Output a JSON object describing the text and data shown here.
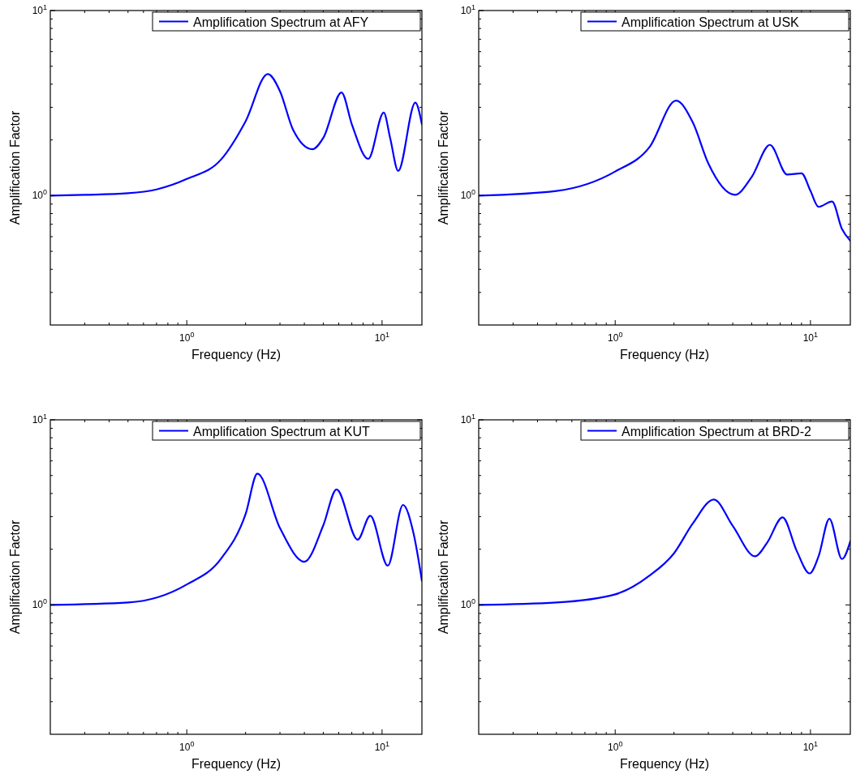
{
  "chart_data": [
    {
      "type": "line",
      "xlabel": "Frequency (Hz)",
      "ylabel": "Amplification Factor",
      "log": "xy",
      "legend": "top right",
      "xlim": [
        0.2,
        16
      ],
      "ylim": [
        0.2,
        10
      ],
      "xticks": [
        {
          "value": 0.3,
          "label": null
        },
        {
          "value": 0.4,
          "label": null
        },
        {
          "value": 0.5,
          "label": null
        },
        {
          "value": 0.6,
          "label": null
        },
        {
          "value": 0.7,
          "label": null
        },
        {
          "value": 0.8,
          "label": null
        },
        {
          "value": 0.9,
          "label": null
        },
        {
          "value": 1,
          "label": "10$^{0}$"
        },
        {
          "value": 2,
          "label": null
        },
        {
          "value": 3,
          "label": null
        },
        {
          "value": 4,
          "label": null
        },
        {
          "value": 5,
          "label": null
        },
        {
          "value": 6,
          "label": null
        },
        {
          "value": 7,
          "label": null
        },
        {
          "value": 8,
          "label": null
        },
        {
          "value": 9,
          "label": null
        },
        {
          "value": 10,
          "label": "10$^{1}$"
        }
      ],
      "yticks": [
        {
          "value": 0.3,
          "label": null
        },
        {
          "value": 0.4,
          "label": null
        },
        {
          "value": 0.5,
          "label": null
        },
        {
          "value": 0.6,
          "label": null
        },
        {
          "value": 0.7,
          "label": null
        },
        {
          "value": 0.8,
          "label": null
        },
        {
          "value": 0.9,
          "label": null
        },
        {
          "value": 1,
          "label": "10$^{0}$"
        },
        {
          "value": 2,
          "label": null
        },
        {
          "value": 3,
          "label": null
        },
        {
          "value": 4,
          "label": null
        },
        {
          "value": 5,
          "label": null
        },
        {
          "value": 6,
          "label": null
        },
        {
          "value": 7,
          "label": null
        },
        {
          "value": 8,
          "label": null
        },
        {
          "value": 9,
          "label": null
        },
        {
          "value": 10,
          "label": "10$^{1}$"
        }
      ],
      "series": [
        {
          "name": "Amplification Spectrum at AFY",
          "color": "#0000ff",
          "x": [
            0.2,
            0.3,
            0.5,
            0.7,
            1.0,
            1.5,
            2.0,
            2.6,
            3.0,
            3.5,
            4.4,
            5.0,
            6.2,
            7.0,
            8.5,
            10.2,
            11.0,
            12.1,
            14.8,
            16
          ],
          "values": [
            1.0,
            1.01,
            1.03,
            1.08,
            1.23,
            1.57,
            2.52,
            4.54,
            3.67,
            2.27,
            1.78,
            2.05,
            3.61,
            2.43,
            1.58,
            2.81,
            2.05,
            1.36,
            3.18,
            2.43
          ]
        }
      ]
    },
    {
      "type": "line",
      "xlabel": "Frequency (Hz)",
      "ylabel": "Amplification Factor",
      "log": "xy",
      "legend": "top right",
      "xlim": [
        0.2,
        16
      ],
      "ylim": [
        0.2,
        10
      ],
      "xticks": [
        {
          "value": 0.3,
          "label": null
        },
        {
          "value": 0.4,
          "label": null
        },
        {
          "value": 0.5,
          "label": null
        },
        {
          "value": 0.6,
          "label": null
        },
        {
          "value": 0.7,
          "label": null
        },
        {
          "value": 0.8,
          "label": null
        },
        {
          "value": 0.9,
          "label": null
        },
        {
          "value": 1,
          "label": "10$^{0}$"
        },
        {
          "value": 2,
          "label": null
        },
        {
          "value": 3,
          "label": null
        },
        {
          "value": 4,
          "label": null
        },
        {
          "value": 5,
          "label": null
        },
        {
          "value": 6,
          "label": null
        },
        {
          "value": 7,
          "label": null
        },
        {
          "value": 8,
          "label": null
        },
        {
          "value": 9,
          "label": null
        },
        {
          "value": 10,
          "label": "10$^{1}$"
        }
      ],
      "yticks": [
        {
          "value": 0.3,
          "label": null
        },
        {
          "value": 0.4,
          "label": null
        },
        {
          "value": 0.5,
          "label": null
        },
        {
          "value": 0.6,
          "label": null
        },
        {
          "value": 0.7,
          "label": null
        },
        {
          "value": 0.8,
          "label": null
        },
        {
          "value": 0.9,
          "label": null
        },
        {
          "value": 1,
          "label": "10$^{0}$"
        },
        {
          "value": 2,
          "label": null
        },
        {
          "value": 3,
          "label": null
        },
        {
          "value": 4,
          "label": null
        },
        {
          "value": 5,
          "label": null
        },
        {
          "value": 6,
          "label": null
        },
        {
          "value": 7,
          "label": null
        },
        {
          "value": 8,
          "label": null
        },
        {
          "value": 9,
          "label": null
        },
        {
          "value": 10,
          "label": "10$^{1}$"
        }
      ],
      "series": [
        {
          "name": "Amplification Spectrum at USK",
          "color": "#0000ff",
          "x": [
            0.2,
            0.5,
            1.0,
            1.5,
            2.05,
            2.5,
            3.0,
            4.1,
            5.0,
            6.2,
            7.6,
            9.0,
            10.0,
            11.0,
            12.9,
            14.5,
            16
          ],
          "values": [
            1.0,
            1.06,
            1.35,
            1.83,
            3.26,
            2.48,
            1.49,
            1.01,
            1.26,
            1.88,
            1.3,
            1.32,
            1.06,
            0.87,
            0.93,
            0.66,
            0.57
          ]
        }
      ]
    },
    {
      "type": "line",
      "xlabel": "Frequency (Hz)",
      "ylabel": "Amplification Factor",
      "log": "xy",
      "legend": "top right",
      "xlim": [
        0.2,
        16
      ],
      "ylim": [
        0.2,
        10
      ],
      "xticks": [
        {
          "value": 0.3,
          "label": null
        },
        {
          "value": 0.4,
          "label": null
        },
        {
          "value": 0.5,
          "label": null
        },
        {
          "value": 0.6,
          "label": null
        },
        {
          "value": 0.7,
          "label": null
        },
        {
          "value": 0.8,
          "label": null
        },
        {
          "value": 0.9,
          "label": null
        },
        {
          "value": 1,
          "label": "10$^{0}$"
        },
        {
          "value": 2,
          "label": null
        },
        {
          "value": 3,
          "label": null
        },
        {
          "value": 4,
          "label": null
        },
        {
          "value": 5,
          "label": null
        },
        {
          "value": 6,
          "label": null
        },
        {
          "value": 7,
          "label": null
        },
        {
          "value": 8,
          "label": null
        },
        {
          "value": 9,
          "label": null
        },
        {
          "value": 10,
          "label": "10$^{1}$"
        }
      ],
      "yticks": [
        {
          "value": 0.3,
          "label": null
        },
        {
          "value": 0.4,
          "label": null
        },
        {
          "value": 0.5,
          "label": null
        },
        {
          "value": 0.6,
          "label": null
        },
        {
          "value": 0.7,
          "label": null
        },
        {
          "value": 0.8,
          "label": null
        },
        {
          "value": 0.9,
          "label": null
        },
        {
          "value": 1,
          "label": "10$^{0}$"
        },
        {
          "value": 2,
          "label": null
        },
        {
          "value": 3,
          "label": null
        },
        {
          "value": 4,
          "label": null
        },
        {
          "value": 5,
          "label": null
        },
        {
          "value": 6,
          "label": null
        },
        {
          "value": 7,
          "label": null
        },
        {
          "value": 8,
          "label": null
        },
        {
          "value": 9,
          "label": null
        },
        {
          "value": 10,
          "label": "10$^{1}$"
        }
      ],
      "series": [
        {
          "name": "Amplification Spectrum at KUT",
          "color": "#0000ff",
          "x": [
            0.2,
            0.5,
            1.0,
            1.5,
            2.0,
            2.3,
            3.0,
            4.0,
            5.0,
            5.85,
            7.5,
            8.7,
            10.7,
            12.8,
            14.5,
            16
          ],
          "values": [
            1.0,
            1.03,
            1.29,
            1.78,
            3.09,
            5.12,
            2.6,
            1.71,
            2.69,
            4.21,
            2.25,
            3.03,
            1.63,
            3.47,
            2.43,
            1.35
          ]
        }
      ]
    },
    {
      "type": "line",
      "xlabel": "Frequency (Hz)",
      "ylabel": "Amplification Factor",
      "log": "xy",
      "legend": "top right",
      "xlim": [
        0.2,
        16
      ],
      "ylim": [
        0.2,
        10
      ],
      "xticks": [
        {
          "value": 0.3,
          "label": null
        },
        {
          "value": 0.4,
          "label": null
        },
        {
          "value": 0.5,
          "label": null
        },
        {
          "value": 0.6,
          "label": null
        },
        {
          "value": 0.7,
          "label": null
        },
        {
          "value": 0.8,
          "label": null
        },
        {
          "value": 0.9,
          "label": null
        },
        {
          "value": 1,
          "label": "10$^{0}$"
        },
        {
          "value": 2,
          "label": null
        },
        {
          "value": 3,
          "label": null
        },
        {
          "value": 4,
          "label": null
        },
        {
          "value": 5,
          "label": null
        },
        {
          "value": 6,
          "label": null
        },
        {
          "value": 7,
          "label": null
        },
        {
          "value": 8,
          "label": null
        },
        {
          "value": 9,
          "label": null
        },
        {
          "value": 10,
          "label": "10$^{1}$"
        }
      ],
      "yticks": [
        {
          "value": 0.3,
          "label": null
        },
        {
          "value": 0.4,
          "label": null
        },
        {
          "value": 0.5,
          "label": null
        },
        {
          "value": 0.6,
          "label": null
        },
        {
          "value": 0.7,
          "label": null
        },
        {
          "value": 0.8,
          "label": null
        },
        {
          "value": 0.9,
          "label": null
        },
        {
          "value": 1,
          "label": "10$^{0}$"
        },
        {
          "value": 2,
          "label": null
        },
        {
          "value": 3,
          "label": null
        },
        {
          "value": 4,
          "label": null
        },
        {
          "value": 5,
          "label": null
        },
        {
          "value": 6,
          "label": null
        },
        {
          "value": 7,
          "label": null
        },
        {
          "value": 8,
          "label": null
        },
        {
          "value": 9,
          "label": null
        },
        {
          "value": 10,
          "label": "10$^{1}$"
        }
      ],
      "series": [
        {
          "name": "Amplification Spectrum at BRD-2",
          "color": "#0000ff",
          "x": [
            0.2,
            0.5,
            1.0,
            1.5,
            2.0,
            2.5,
            3.2,
            4.0,
            5.2,
            6.0,
            7.2,
            8.5,
            9.9,
            11.0,
            12.5,
            14.5,
            16
          ],
          "values": [
            1.0,
            1.03,
            1.14,
            1.44,
            1.9,
            2.76,
            3.71,
            2.67,
            1.83,
            2.17,
            2.97,
            1.96,
            1.48,
            1.83,
            2.92,
            1.77,
            2.21
          ]
        }
      ]
    }
  ]
}
